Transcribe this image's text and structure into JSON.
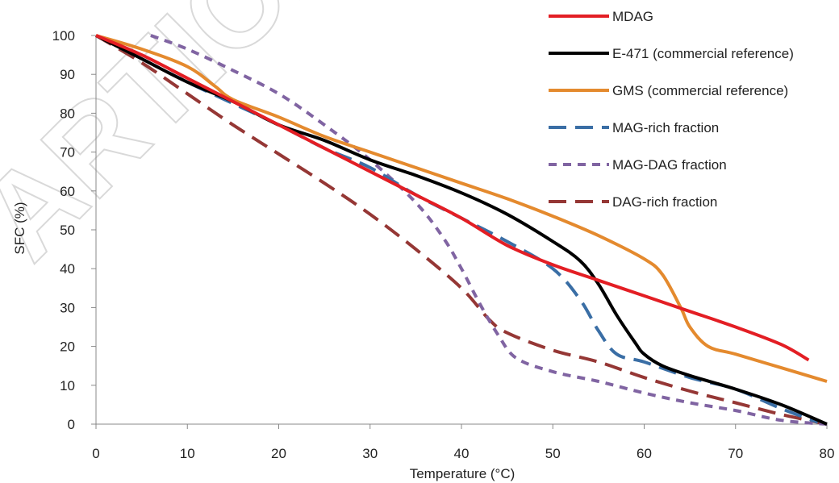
{
  "chart_data": {
    "type": "line",
    "xlabel": "Temperature (°C)",
    "ylabel": "SFC (%)",
    "xlim": [
      0,
      80
    ],
    "ylim": [
      0,
      100
    ],
    "xticks": [
      0,
      10,
      20,
      30,
      40,
      50,
      60,
      70,
      80
    ],
    "yticks": [
      0,
      10,
      20,
      30,
      40,
      50,
      60,
      70,
      80,
      90,
      100
    ],
    "grid": false,
    "legend_position": "top-right",
    "series": [
      {
        "name": "MDAG",
        "color": "#e31e24",
        "style": "solid",
        "points": [
          [
            0,
            100
          ],
          [
            5,
            95
          ],
          [
            10,
            89
          ],
          [
            15,
            83
          ],
          [
            20,
            77
          ],
          [
            25,
            71
          ],
          [
            30,
            65
          ],
          [
            35,
            59
          ],
          [
            40,
            53
          ],
          [
            45,
            46
          ],
          [
            50,
            41
          ],
          [
            55,
            37
          ],
          [
            60,
            33
          ],
          [
            65,
            29
          ],
          [
            70,
            25
          ],
          [
            75,
            20.5
          ],
          [
            78,
            16.5
          ]
        ]
      },
      {
        "name": "E-471 (commercial reference)",
        "color": "#000000",
        "style": "solid",
        "points": [
          [
            0,
            100
          ],
          [
            5,
            94
          ],
          [
            10,
            88
          ],
          [
            15,
            83
          ],
          [
            20,
            77
          ],
          [
            25,
            73
          ],
          [
            30,
            68
          ],
          [
            35,
            64
          ],
          [
            40,
            59.5
          ],
          [
            45,
            54
          ],
          [
            50,
            47
          ],
          [
            53,
            42
          ],
          [
            55,
            36
          ],
          [
            57,
            28
          ],
          [
            59,
            21
          ],
          [
            60,
            18
          ],
          [
            62,
            15
          ],
          [
            65,
            12.5
          ],
          [
            70,
            9
          ],
          [
            75,
            5
          ],
          [
            80,
            0
          ]
        ]
      },
      {
        "name": "GMS (commercial reference)",
        "color": "#e48a2e",
        "style": "solid",
        "points": [
          [
            0,
            100
          ],
          [
            5,
            96.5
          ],
          [
            10,
            92
          ],
          [
            13,
            87
          ],
          [
            15,
            83.5
          ],
          [
            20,
            79
          ],
          [
            25,
            74
          ],
          [
            30,
            70
          ],
          [
            35,
            66
          ],
          [
            40,
            62
          ],
          [
            45,
            58
          ],
          [
            50,
            53.5
          ],
          [
            55,
            48.5
          ],
          [
            60,
            42.5
          ],
          [
            62,
            38.5
          ],
          [
            64,
            30
          ],
          [
            65,
            25
          ],
          [
            67,
            20
          ],
          [
            70,
            18
          ],
          [
            75,
            14.5
          ],
          [
            80,
            11
          ]
        ]
      },
      {
        "name": "MAG-rich fraction",
        "color": "#3a6ea5",
        "style": "long-dash",
        "points": [
          [
            0,
            100
          ],
          [
            5,
            94
          ],
          [
            10,
            88
          ],
          [
            15,
            82.5
          ],
          [
            20,
            77
          ],
          [
            25,
            71
          ],
          [
            30,
            66
          ],
          [
            35,
            59
          ],
          [
            40,
            53
          ],
          [
            45,
            47
          ],
          [
            50,
            40
          ],
          [
            53,
            32
          ],
          [
            55,
            24
          ],
          [
            57,
            18
          ],
          [
            60,
            16
          ],
          [
            65,
            12
          ],
          [
            70,
            9
          ],
          [
            75,
            4
          ],
          [
            79,
            0.5
          ]
        ]
      },
      {
        "name": "MAG-DAG fraction",
        "color": "#8064a2",
        "style": "short-dash",
        "points": [
          [
            6,
            100
          ],
          [
            10,
            96.5
          ],
          [
            15,
            91
          ],
          [
            20,
            85
          ],
          [
            25,
            77
          ],
          [
            30,
            68
          ],
          [
            35,
            57
          ],
          [
            38,
            48
          ],
          [
            40,
            40
          ],
          [
            42,
            31
          ],
          [
            44,
            23
          ],
          [
            46,
            17
          ],
          [
            50,
            13.5
          ],
          [
            55,
            11
          ],
          [
            60,
            8
          ],
          [
            65,
            5.5
          ],
          [
            70,
            3.5
          ],
          [
            75,
            1
          ],
          [
            80,
            0
          ]
        ]
      },
      {
        "name": "DAG-rich fraction",
        "color": "#953735",
        "style": "long-dash",
        "points": [
          [
            0,
            100
          ],
          [
            5,
            93
          ],
          [
            10,
            85
          ],
          [
            15,
            77
          ],
          [
            20,
            69.5
          ],
          [
            25,
            62
          ],
          [
            30,
            54
          ],
          [
            35,
            45
          ],
          [
            40,
            35
          ],
          [
            43,
            27
          ],
          [
            45,
            23.5
          ],
          [
            50,
            19
          ],
          [
            55,
            16
          ],
          [
            60,
            12
          ],
          [
            65,
            8.5
          ],
          [
            70,
            5.5
          ],
          [
            75,
            2.5
          ],
          [
            80,
            0
          ]
        ]
      }
    ]
  },
  "watermark_text": "ARTICLE"
}
